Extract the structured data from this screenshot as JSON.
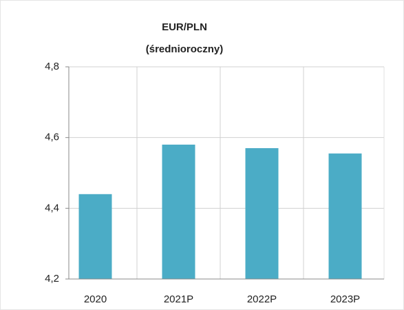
{
  "chart_data": {
    "type": "bar",
    "title": "EUR/PLN",
    "subtitle": "(średnioroczny)",
    "categories": [
      "2020",
      "2021P",
      "2022P",
      "2023P"
    ],
    "values": [
      4.44,
      4.58,
      4.57,
      4.555
    ],
    "color": "#4bacc6",
    "ylim": [
      4.2,
      4.8
    ],
    "yticks": [
      {
        "value": 4.2,
        "label": "4,2"
      },
      {
        "value": 4.4,
        "label": "4,4"
      },
      {
        "value": 4.6,
        "label": "4,6"
      },
      {
        "value": 4.8,
        "label": "4,8"
      }
    ],
    "grid": true
  }
}
